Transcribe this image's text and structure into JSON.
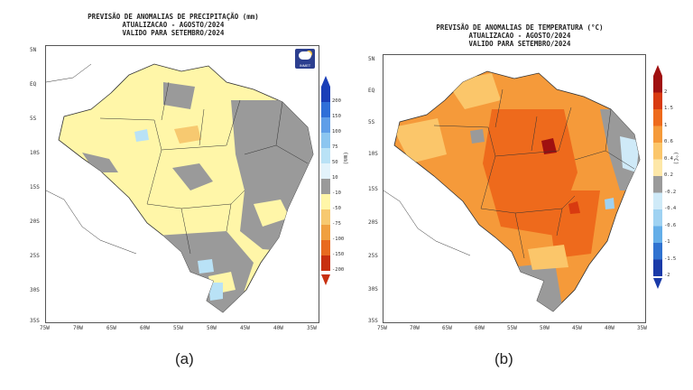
{
  "panels": {
    "a": {
      "title1": "PREVISÃO DE ANOMALIAS DE PRECIPITAÇÃO (mm)",
      "title2": "ATUALIZACAO - AGOSTO/2024",
      "title3": "VALIDO PARA SETEMBRO/2024",
      "caption": "(a)",
      "unit": "(mm)",
      "logo_text": "INMET",
      "colorbar": {
        "labels": [
          "200",
          "150",
          "100",
          "75",
          "50",
          "10",
          "-10",
          "-50",
          "-75",
          "-100",
          "-150",
          "-200"
        ],
        "colors": [
          "#1a3fb8",
          "#2f6fd8",
          "#5f9ee8",
          "#8cc6f0",
          "#b9e2f6",
          "#e3f3fb",
          "#9a9a9a",
          "#fff6a8",
          "#f7c970",
          "#f0a040",
          "#e86a20",
          "#c83010"
        ]
      }
    },
    "b": {
      "title1": "PREVISÃO DE ANOMALIAS DE TEMPERATURA (°C)",
      "title2": "ATUALIZACAO - AGOSTO/2024",
      "title3": "VALIDO PARA SETEMBRO/2024",
      "caption": "(b)",
      "unit": "(°C)",
      "colorbar": {
        "labels": [
          "2",
          "1.5",
          "1",
          "0.6",
          "0.4",
          "0.2",
          "-0.2",
          "-0.4",
          "-0.6",
          "-1",
          "-1.5",
          "-2"
        ],
        "colors": [
          "#a01010",
          "#d83a10",
          "#ee6a1c",
          "#f59a3a",
          "#fbc66a",
          "#fde7a8",
          "#9a9a9a",
          "#cfeaf8",
          "#9fd2f2",
          "#64aee8",
          "#2f72d0",
          "#1a3aa8"
        ]
      }
    }
  },
  "axes": {
    "x_ticks": [
      "75W",
      "70W",
      "65W",
      "60W",
      "55W",
      "50W",
      "45W",
      "40W",
      "35W"
    ],
    "y_ticks": [
      "5N",
      "EQ",
      "5S",
      "10S",
      "15S",
      "20S",
      "25S",
      "30S",
      "35S"
    ]
  }
}
